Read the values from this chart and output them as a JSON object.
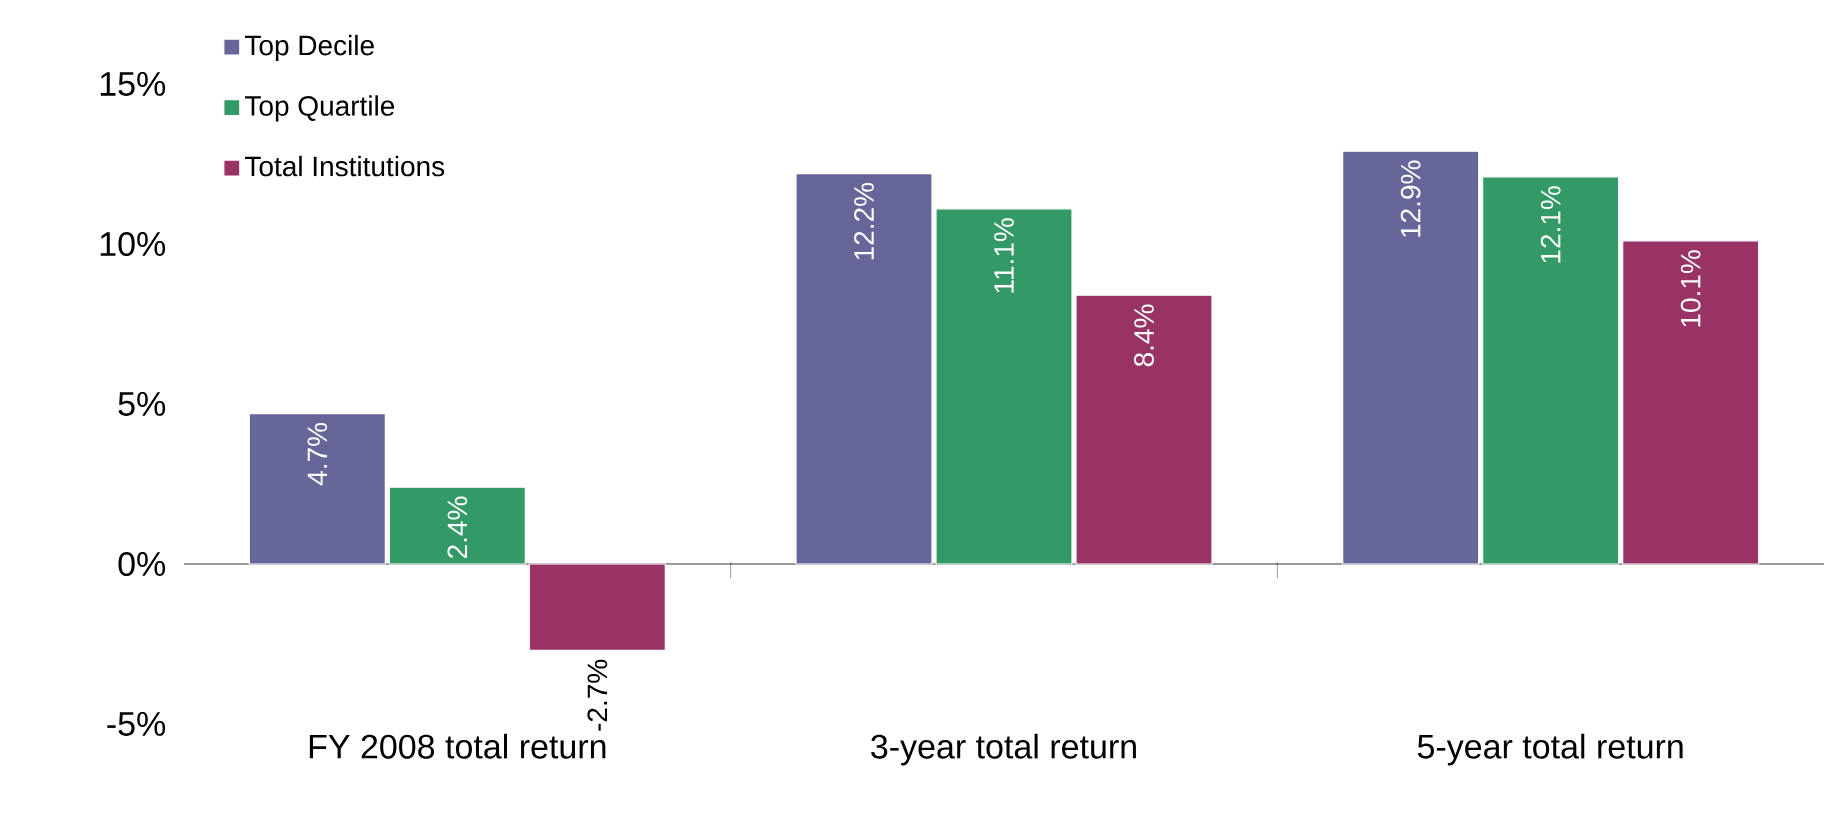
{
  "chart_data": {
    "type": "bar",
    "categories": [
      "FY 2008 total return",
      "3-year total return",
      "5-year total return"
    ],
    "series": [
      {
        "name": "Top Decile",
        "color": "#666699",
        "values": [
          4.7,
          12.2,
          12.9
        ],
        "value_labels": [
          "4.7%",
          "12.2%",
          "12.9%"
        ]
      },
      {
        "name": "Top Quartile",
        "color": "#339966",
        "values": [
          2.4,
          11.1,
          12.1
        ],
        "value_labels": [
          "2.4%",
          "11.1%",
          "12.1%"
        ]
      },
      {
        "name": "Total Institutions",
        "color": "#993366",
        "values": [
          -2.7,
          8.4,
          10.1
        ],
        "value_labels": [
          "-2.7%",
          "8.4%",
          "10.1%"
        ]
      }
    ],
    "ylim": [
      -5,
      15
    ],
    "yticks": [
      {
        "value": -5,
        "label": "-5%"
      },
      {
        "value": 0,
        "label": "0%"
      },
      {
        "value": 5,
        "label": "5%"
      },
      {
        "value": 10,
        "label": "10%"
      },
      {
        "value": 15,
        "label": "15%"
      }
    ],
    "legend": "top left"
  }
}
